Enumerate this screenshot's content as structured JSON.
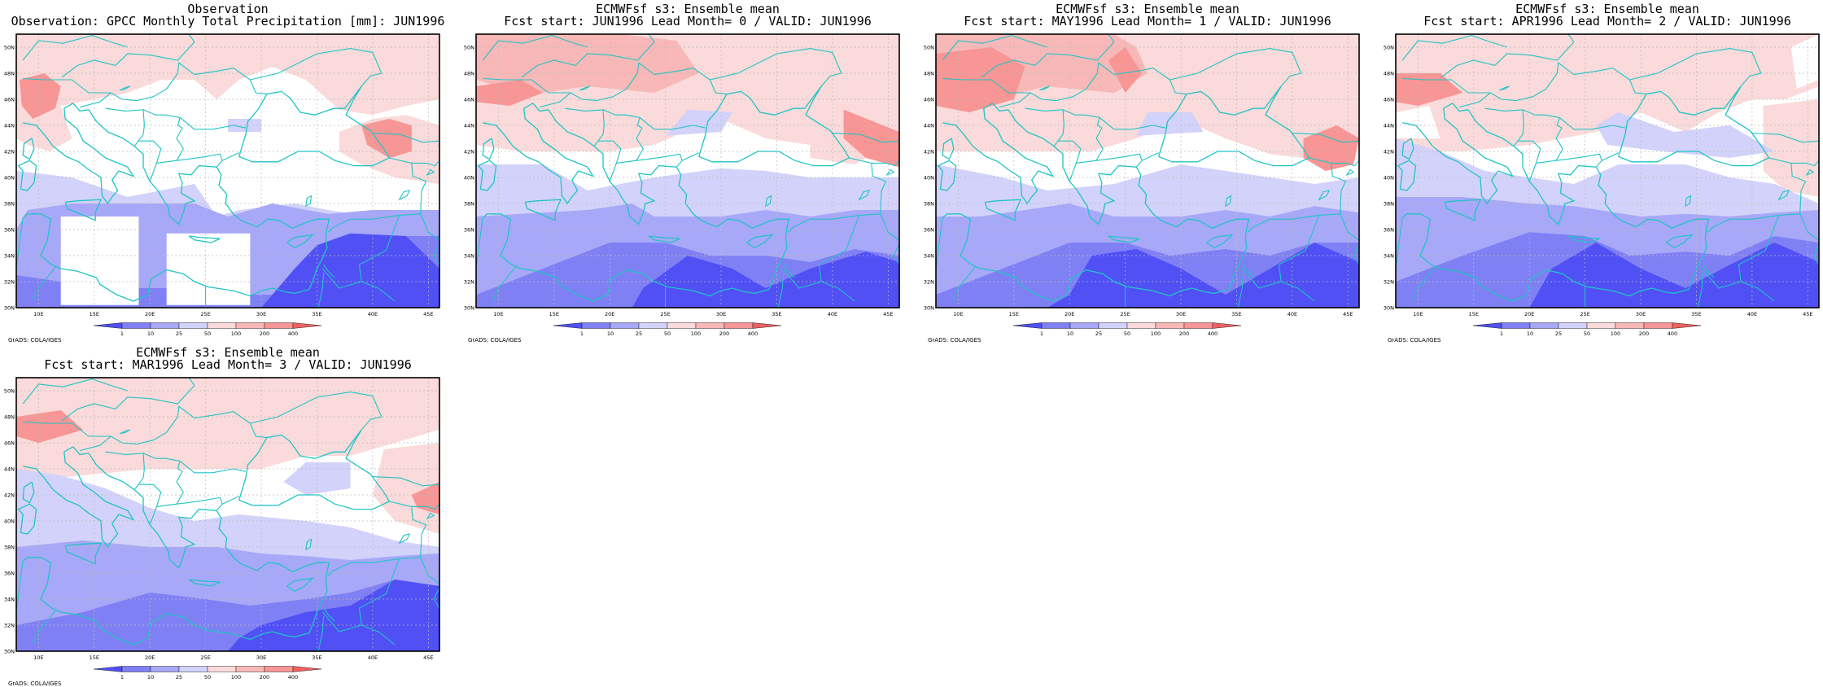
{
  "panels": [
    {
      "kind": "observation",
      "title_line1": "Observation",
      "title_line2": "Observation: GPCC Monthly Total Precipitation [mm]: JUN1996",
      "credit": "GrADS: COLA/IGES"
    },
    {
      "kind": "forecast",
      "title_line1": "ECMWFsf s3: Ensemble mean",
      "title_line2": "Fcst start: JUN1996  Lead Month= 0 / VALID: JUN1996",
      "credit": "GrADS: COLA/IGES"
    },
    {
      "kind": "forecast",
      "title_line1": "ECMWFsf s3: Ensemble mean",
      "title_line2": "Fcst start: MAY1996  Lead Month= 1 / VALID: JUN1996",
      "credit": "GrADS: COLA/IGES"
    },
    {
      "kind": "forecast",
      "title_line1": "ECMWFsf s3: Ensemble mean",
      "title_line2": "Fcst start: APR1996  Lead Month= 2 / VALID: JUN1996",
      "credit": "GrADS: COLA/IGES"
    },
    {
      "kind": "forecast",
      "title_line1": "ECMWFsf s3: Ensemble mean",
      "title_line2": "Fcst start: MAR1996  Lead Month= 3 / VALID: JUN1996",
      "credit": "GrADS: COLA/IGES"
    }
  ],
  "map": {
    "lon_labels": [
      "10E",
      "15E",
      "20E",
      "25E",
      "30E",
      "35E",
      "40E",
      "45E"
    ],
    "lat_labels": [
      "30N",
      "32N",
      "34N",
      "36N",
      "38N",
      "40N",
      "42N",
      "44N",
      "46N",
      "48N",
      "50N"
    ],
    "lon_range": [
      8,
      46
    ],
    "lat_range": [
      30,
      51
    ],
    "coast_color": "#21c4c4",
    "grid_color": "#bbbbbb"
  },
  "colorbar": {
    "labels": [
      "1",
      "10",
      "25",
      "50",
      "100",
      "200",
      "400"
    ],
    "colors": [
      "#5050f5",
      "#8080f5",
      "#a8a8f8",
      "#d2d2fa",
      "#fadada",
      "#f8b8b8",
      "#f89595",
      "#f06262"
    ]
  }
}
